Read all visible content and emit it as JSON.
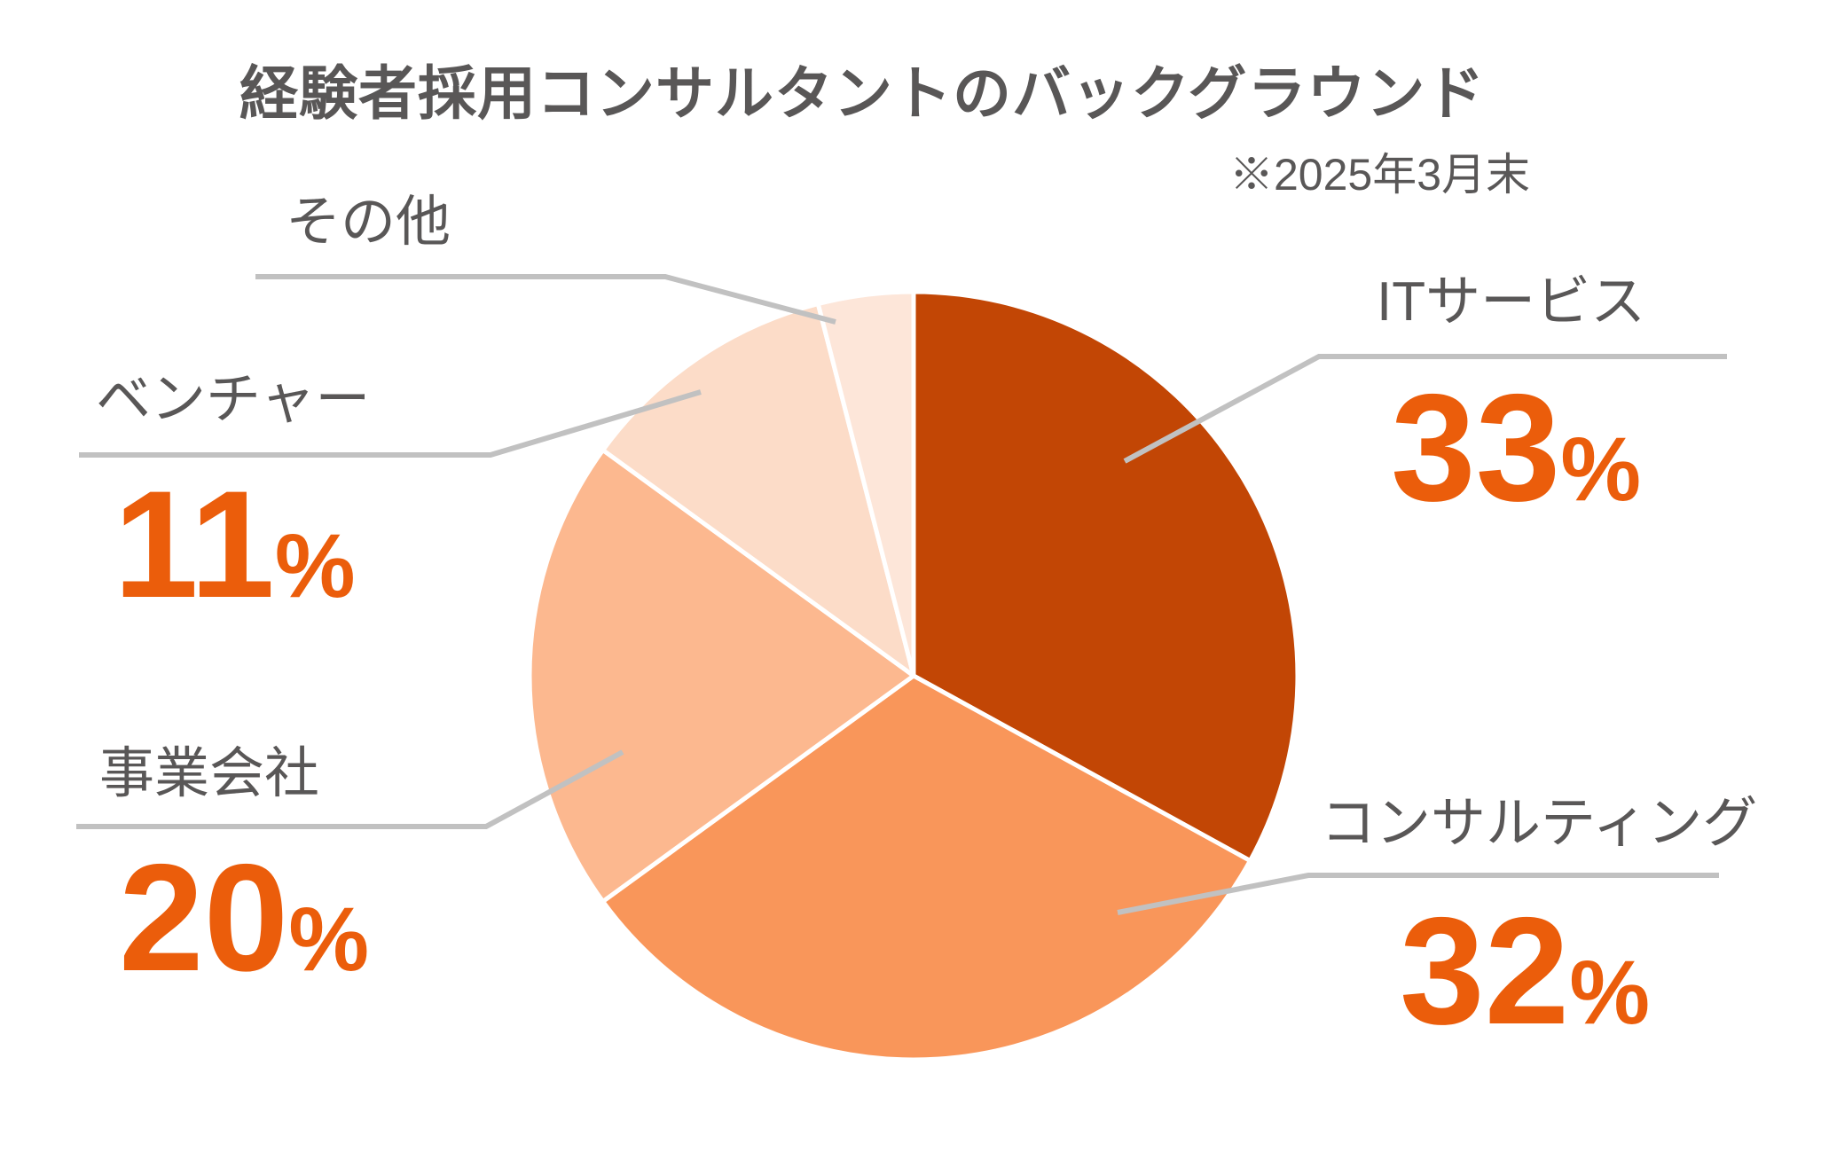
{
  "title": "経験者採用コンサルタントのバックグラウンド",
  "note": "※2025年3月末",
  "colors": {
    "accent_orange": "#eb5d0b",
    "label_gray": "#595757",
    "leader_gray": "#c1c1c1",
    "background": "#ffffff"
  },
  "chart_data": {
    "type": "pie",
    "title": "経験者採用コンサルタントのバックグラウンド",
    "note": "※2025年3月末",
    "start_angle_deg": 0,
    "direction": "clockwise",
    "legend_position": "callout-labels",
    "percent_suffix": "%",
    "slices": [
      {
        "label": "ITサービス",
        "value": 33,
        "percent_label": "33",
        "color": "#c24605"
      },
      {
        "label": "コンサルティング",
        "value": 32,
        "percent_label": "32",
        "color": "#f9965a"
      },
      {
        "label": "事業会社",
        "value": 20,
        "percent_label": "20",
        "color": "#fcb88f"
      },
      {
        "label": "ベンチャー",
        "value": 11,
        "percent_label": "11",
        "color": "#fcdcc8"
      },
      {
        "label": "その他",
        "value": 4,
        "percent_label": null,
        "color": "#fde6d9"
      }
    ]
  }
}
